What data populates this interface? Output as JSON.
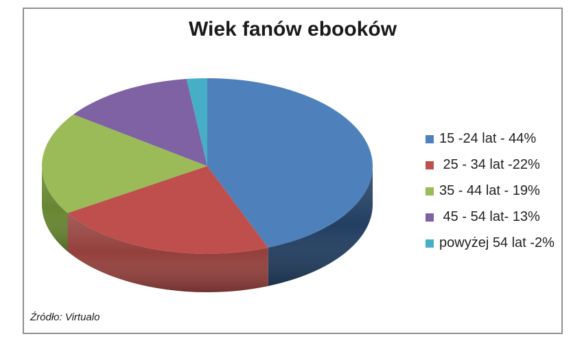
{
  "window": {
    "background_color": "#ffffff",
    "frame_border_color": "#8f8f8f"
  },
  "chart_data": {
    "type": "pie",
    "style": "3d",
    "title": "Wiek fanów ebooków",
    "source": "Źródło: Virtualo",
    "legend_position": "right",
    "start_angle_deg": 0,
    "direction": "clockwise",
    "unit": "%",
    "categories": [
      "15 -24 lat",
      "25 - 34 lat",
      "35 - 44 lat",
      "45 - 54 lat",
      "powyżej 54 lat"
    ],
    "values": [
      44,
      22,
      19,
      13,
      2
    ],
    "slices": [
      {
        "label": "15 -24 lat",
        "percent": 44,
        "legend_text": "15 -24 lat - 44%",
        "color": "#4E81BC",
        "side_color": "#223E61"
      },
      {
        "label": "25 - 34 lat",
        "percent": 22,
        "legend_text": " 25 - 34 lat -22%",
        "color": "#BF4F4C",
        "side_color": "#94403D"
      },
      {
        "label": "35 - 44 lat",
        "percent": 19,
        "legend_text": "35 - 44 lat - 19%",
        "color": "#9ABB58",
        "side_color": "#678631"
      },
      {
        "label": "45 - 54 lat",
        "percent": 13,
        "legend_text": " 45 - 54 lat- 13%",
        "color": "#7E62A4",
        "side_color": "#55406F"
      },
      {
        "label": "powyżej 54 lat",
        "percent": 2,
        "legend_text": "powyżej 54 lat -2%",
        "color": "#47AEC8",
        "side_color": "#2E7C93"
      }
    ]
  }
}
